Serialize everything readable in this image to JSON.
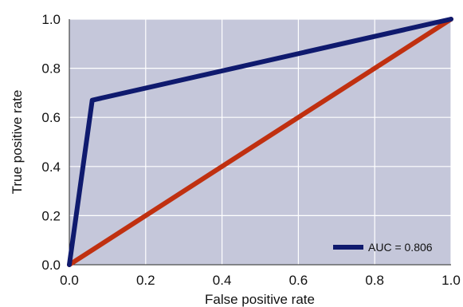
{
  "chart_data": {
    "type": "line",
    "xlabel": "False positive rate",
    "ylabel": "True  positive rate",
    "xlim": [
      0.0,
      1.0
    ],
    "ylim": [
      0.0,
      1.0
    ],
    "x_ticks": [
      "0.0",
      "0.2",
      "0.4",
      "0.6",
      "0.8",
      "1.0"
    ],
    "y_ticks": [
      "0.0",
      "0.2",
      "0.4",
      "0.6",
      "0.8",
      "1.0"
    ],
    "grid": true,
    "legend_position": "bottom-right",
    "background_color": "#c5c7da",
    "series": [
      {
        "name": "AUC = 0.806",
        "color": "#0f1a6e",
        "x": [
          0.0,
          0.06,
          1.0
        ],
        "y": [
          0.0,
          0.67,
          1.0
        ]
      },
      {
        "color": "#c03010",
        "x": [
          0.0,
          1.0
        ],
        "y": [
          0.0,
          1.0
        ]
      }
    ]
  }
}
